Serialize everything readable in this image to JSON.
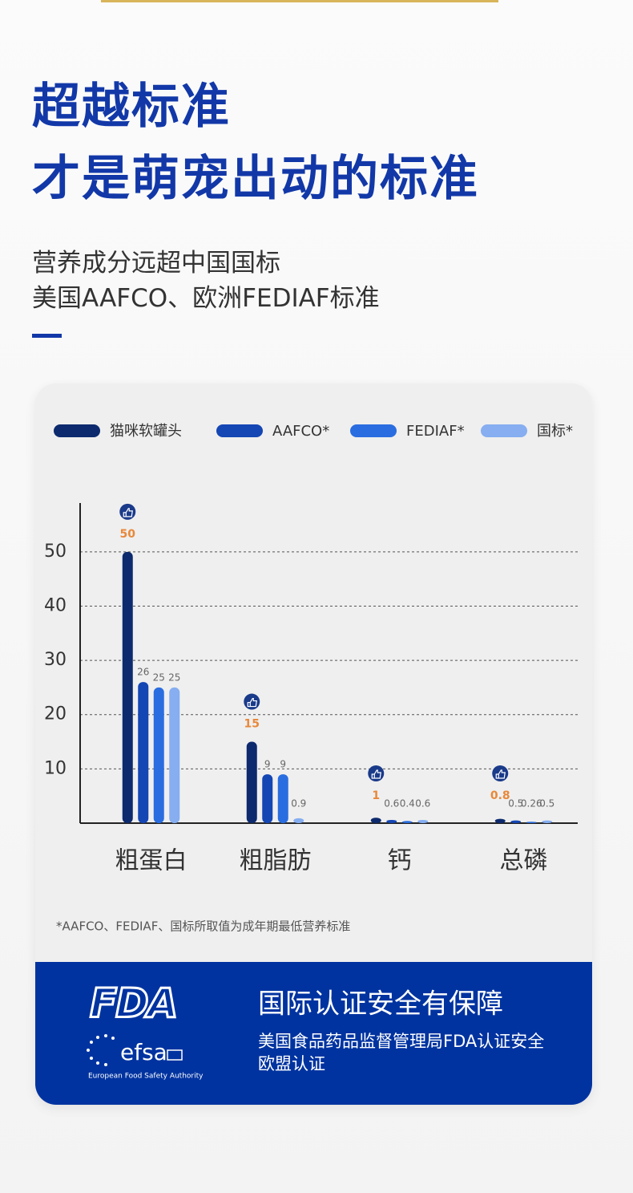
{
  "header": {
    "title": [
      "超越标准",
      "才是萌宠出动的标准"
    ],
    "subtitle": [
      "营养成分远超中国国标",
      "美国AAFCO、欧洲FEDIAF标准"
    ]
  },
  "chart_data": {
    "type": "bar",
    "categories": [
      "粗蛋白",
      "粗脂肪",
      "钙",
      "总磷"
    ],
    "series": [
      {
        "name": "猫咪软罐头",
        "color": "#0d2a6e",
        "values": [
          50,
          15,
          1,
          0.8
        ]
      },
      {
        "name": "AAFCO*",
        "color": "#1446b4",
        "values": [
          26,
          9,
          0.6,
          0.5
        ]
      },
      {
        "name": "FEDIAF*",
        "color": "#2a6de0",
        "values": [
          25,
          9,
          0.4,
          0.26
        ]
      },
      {
        "name": "国标*",
        "color": "#86aef0",
        "values": [
          25,
          0.9,
          0.6,
          0.5
        ]
      }
    ],
    "ylim": [
      0,
      59
    ],
    "yticks": [
      10,
      20,
      30,
      40,
      50
    ],
    "grid": true,
    "legend": "top",
    "footnote": "*AAFCO、FEDIAF、国标所取值为成年期最低营养标准"
  },
  "banner": {
    "title": "国际认证安全有保障",
    "lines": [
      "美国食品药品监督管理局FDA认证安全",
      "欧盟认证"
    ],
    "fda_logo": "FDA",
    "efsa_logo": "efsa",
    "efsa_name": "European Food Safety Authority"
  }
}
